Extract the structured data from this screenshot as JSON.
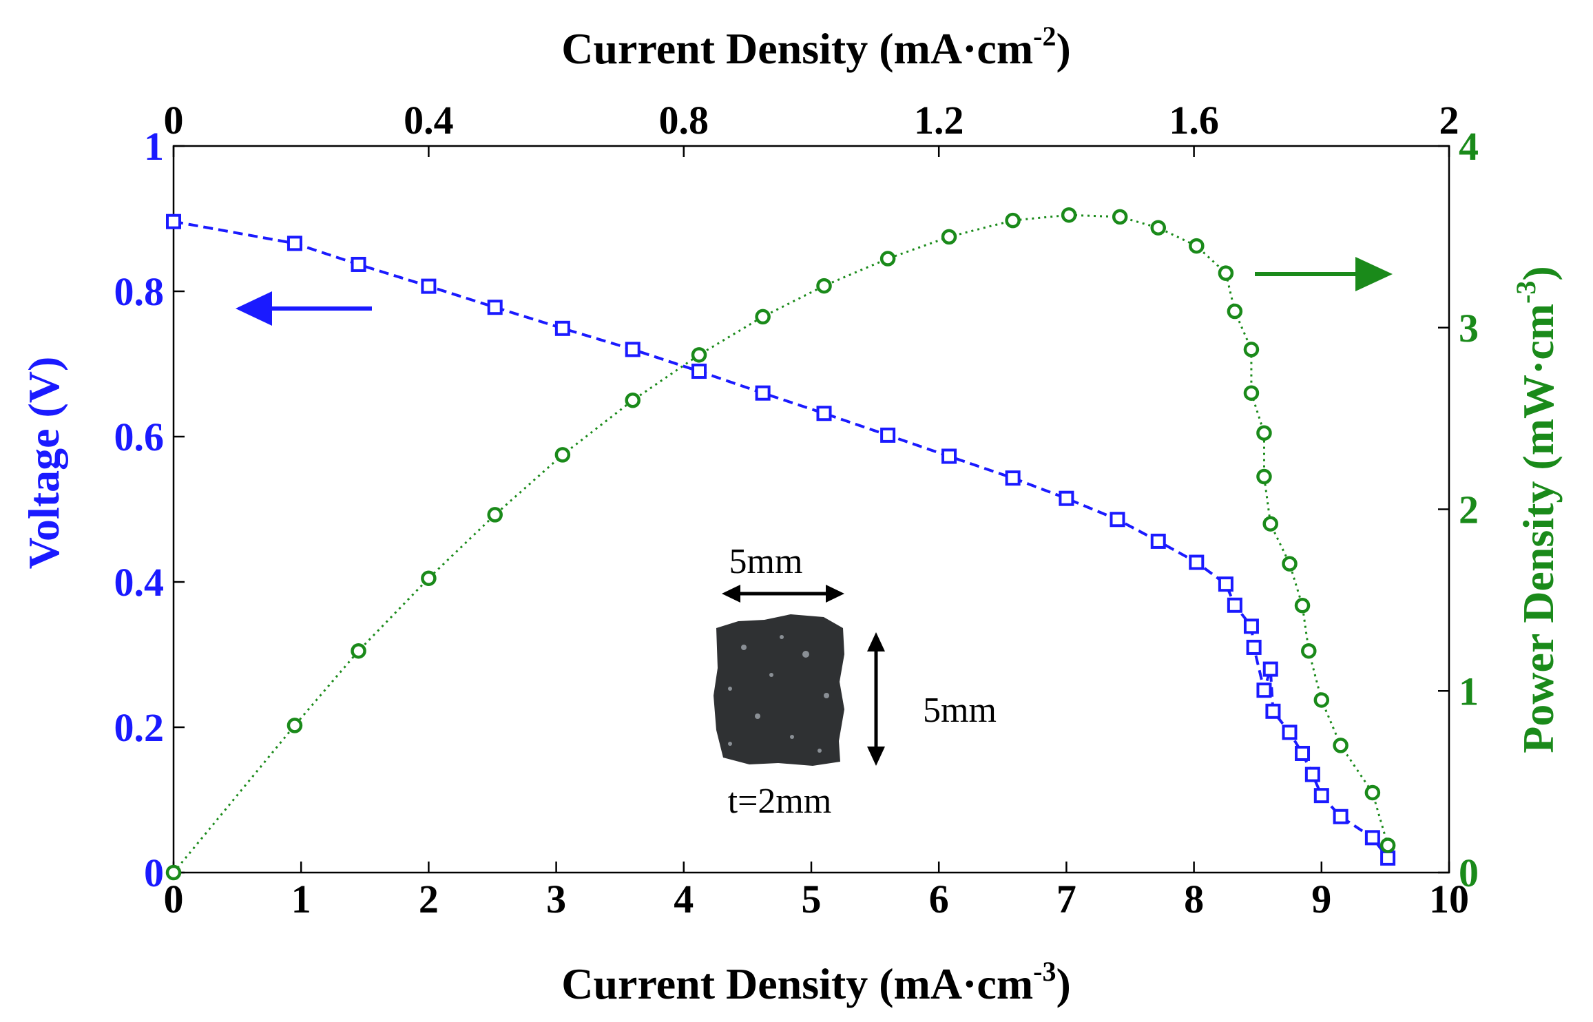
{
  "chart_data": {
    "type": "line",
    "x_axis_bottom": {
      "label": "Current Density (mA·cm",
      "label_sup": "-3",
      "label_tail": ")",
      "range": [
        0,
        10
      ],
      "ticks": [
        0,
        1,
        2,
        3,
        4,
        5,
        6,
        7,
        8,
        9,
        10
      ],
      "tick_labels": [
        "0",
        "1",
        "2",
        "3",
        "4",
        "5",
        "6",
        "7",
        "8",
        "9",
        "10"
      ]
    },
    "x_axis_top": {
      "label": "Current Density (mA·cm",
      "label_sup": "-2",
      "label_tail": ")",
      "range": [
        0,
        2
      ],
      "ticks": [
        0,
        0.4,
        0.8,
        1.2,
        1.6,
        2
      ],
      "tick_labels": [
        "0",
        "0.4",
        "0.8",
        "1.2",
        "1.6",
        "2"
      ]
    },
    "y_axis_left": {
      "label": "Voltage (V)",
      "range": [
        0,
        1
      ],
      "ticks": [
        0,
        0.2,
        0.4,
        0.6,
        0.8,
        1
      ],
      "tick_labels": [
        "0",
        "0.2",
        "0.4",
        "0.6",
        "0.8",
        "1"
      ],
      "color": "#1a1aff"
    },
    "y_axis_right": {
      "label": "Power Density (mW·cm",
      "label_sup": "-3",
      "label_tail": ")",
      "range": [
        0,
        4
      ],
      "ticks": [
        0,
        1,
        2,
        3,
        4
      ],
      "tick_labels": [
        "0",
        "1",
        "2",
        "3",
        "4"
      ],
      "color": "#1a8a1a"
    },
    "series": [
      {
        "axis": "left",
        "marker": "square",
        "line": "dashed",
        "color": "#1a1aff",
        "x": [
          0,
          0.95,
          1.45,
          2.0,
          2.52,
          3.05,
          3.6,
          4.12,
          4.62,
          5.1,
          5.6,
          6.08,
          6.58,
          7.0,
          7.4,
          7.72,
          8.02,
          8.25,
          8.32,
          8.45,
          8.47,
          8.55,
          8.6,
          8.62,
          8.75,
          8.85,
          8.93,
          9.0,
          9.15,
          9.4,
          9.52
        ],
        "y": [
          0.896,
          0.866,
          0.837,
          0.807,
          0.778,
          0.749,
          0.72,
          0.69,
          0.66,
          0.632,
          0.602,
          0.573,
          0.543,
          0.515,
          0.486,
          0.456,
          0.427,
          0.397,
          0.368,
          0.339,
          0.31,
          0.251,
          0.28,
          0.222,
          0.193,
          0.164,
          0.135,
          0.106,
          0.077,
          0.048,
          0.02
        ]
      },
      {
        "axis": "right",
        "marker": "circle",
        "line": "dotted",
        "color": "#1a8a1a",
        "x": [
          0,
          0.95,
          1.45,
          2.0,
          2.52,
          3.05,
          3.6,
          4.12,
          4.62,
          5.1,
          5.6,
          6.08,
          6.58,
          7.02,
          7.42,
          7.72,
          8.02,
          8.25,
          8.32,
          8.45,
          8.45,
          8.55,
          8.55,
          8.6,
          8.75,
          8.85,
          8.9,
          9.0,
          9.15,
          9.4,
          9.52
        ],
        "y": [
          0,
          0.81,
          1.22,
          1.62,
          1.97,
          2.3,
          2.6,
          2.85,
          3.06,
          3.23,
          3.38,
          3.5,
          3.59,
          3.62,
          3.61,
          3.55,
          3.45,
          3.3,
          3.09,
          2.88,
          2.64,
          2.42,
          2.18,
          1.92,
          1.7,
          1.47,
          1.22,
          0.95,
          0.7,
          0.44,
          0.15
        ]
      }
    ],
    "inset": {
      "width_label": "5mm",
      "height_label": "5mm",
      "thickness_label": "t=2mm"
    },
    "colors": {
      "axes": "#000000",
      "grid_ticks": "#000000",
      "sample": "#2f3133"
    }
  }
}
